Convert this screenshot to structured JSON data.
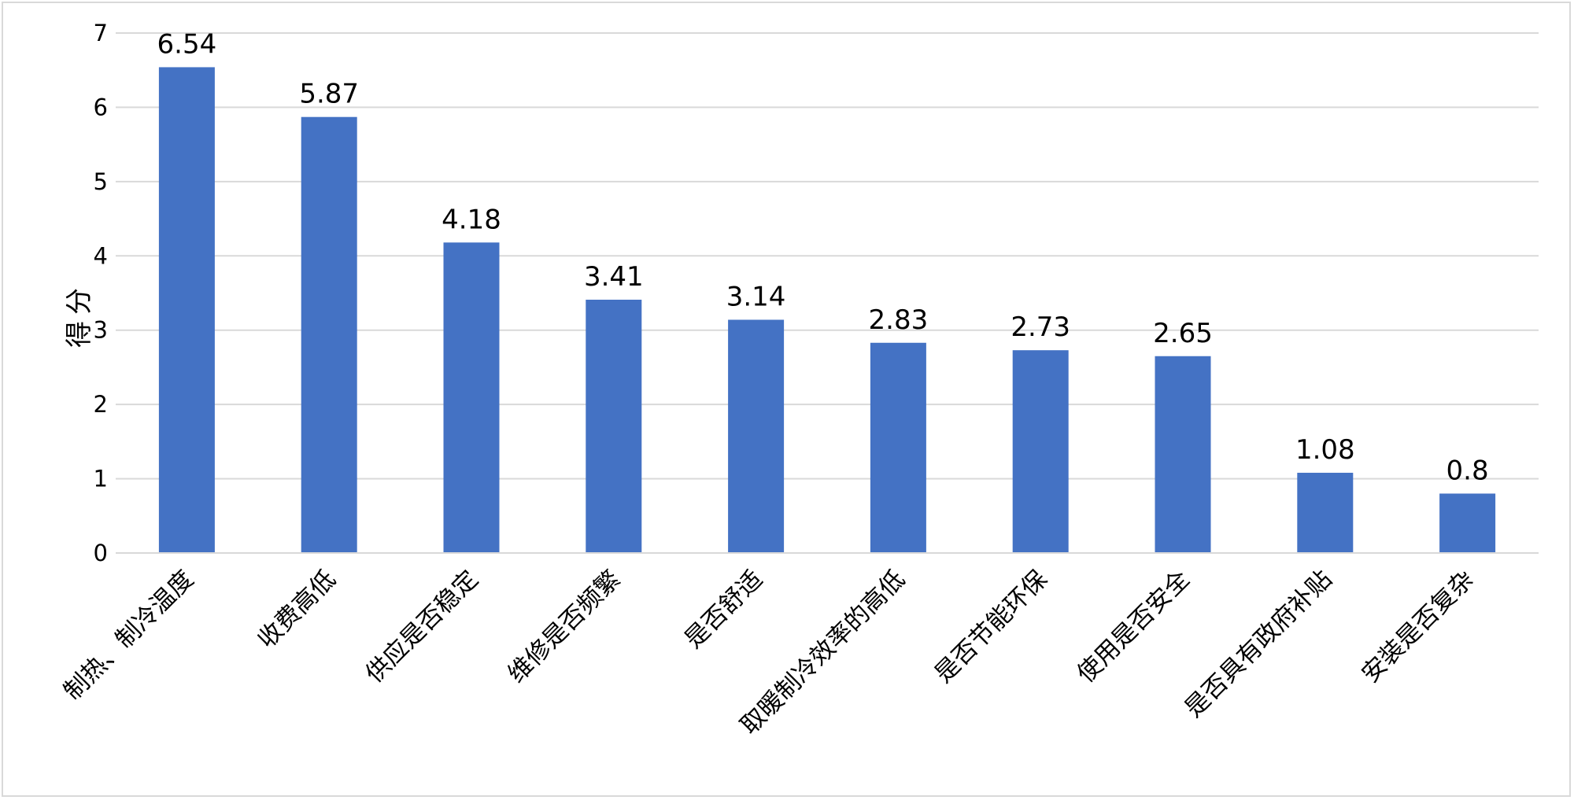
{
  "chart_data": {
    "type": "bar",
    "title": "",
    "xlabel": "",
    "ylabel": "得分",
    "ylim": [
      0,
      7
    ],
    "yticks": [
      0,
      1,
      2,
      3,
      4,
      5,
      6,
      7
    ],
    "grid": true,
    "legend": "none",
    "categories": [
      "制热、制冷温度",
      "收费高低",
      "供应是否稳定",
      "维修是否频繁",
      "是否舒适",
      "取暖制冷效率的高低",
      "是否节能环保",
      "使用是否安全",
      "是否具有政府补贴",
      "安装是否复杂"
    ],
    "values": [
      6.54,
      5.87,
      4.18,
      3.41,
      3.14,
      2.83,
      2.73,
      2.65,
      1.08,
      0.8
    ],
    "data_labels": [
      "6.54",
      "5.87",
      "4.18",
      "3.41",
      "3.14",
      "2.83",
      "2.73",
      "2.65",
      "1.08",
      "0.8"
    ],
    "colors": {
      "bar": "#4472c4",
      "grid": "#d9d9d9",
      "axis": "#d9d9d9",
      "text": "#000000"
    }
  }
}
